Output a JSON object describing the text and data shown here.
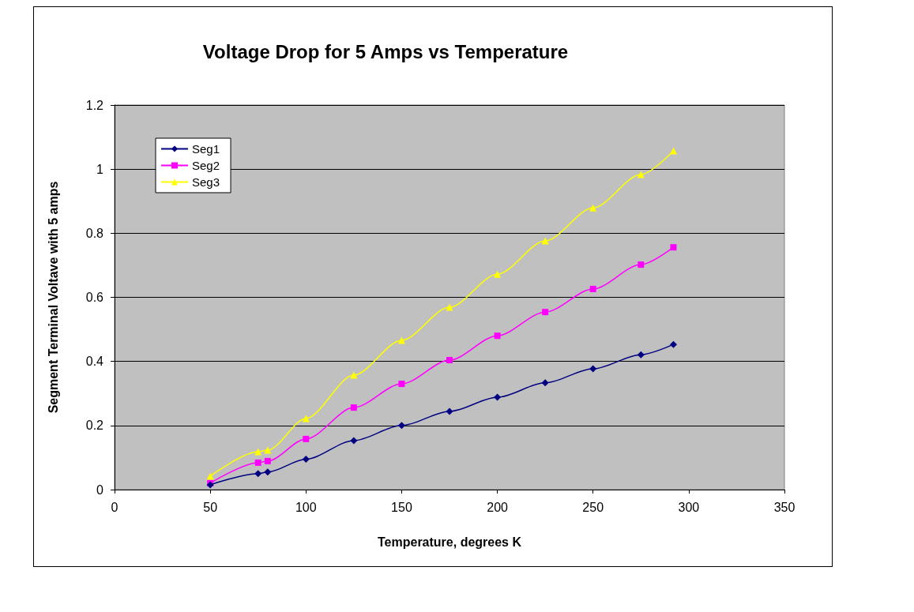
{
  "chart_data": {
    "type": "line",
    "title": "Voltage Drop for 5 Amps vs Temperature",
    "xlabel": "Temperature, degrees K",
    "ylabel": "Segment Terminal Voltave with 5 amps",
    "x": [
      50,
      75,
      80,
      100,
      125,
      150,
      175,
      200,
      225,
      250,
      275,
      292
    ],
    "series": [
      {
        "name": "Seg1",
        "color": "#000080",
        "marker": "diamond",
        "values": [
          0.015,
          0.05,
          0.055,
          0.095,
          0.153,
          0.2,
          0.244,
          0.288,
          0.333,
          0.377,
          0.421,
          0.453
        ]
      },
      {
        "name": "Seg2",
        "color": "#ff00ff",
        "marker": "square",
        "values": [
          0.02,
          0.084,
          0.089,
          0.158,
          0.256,
          0.33,
          0.404,
          0.48,
          0.554,
          0.626,
          0.702,
          0.756
        ]
      },
      {
        "name": "Seg3",
        "color": "#ffff00",
        "marker": "triangle",
        "values": [
          0.042,
          0.118,
          0.123,
          0.222,
          0.357,
          0.466,
          0.569,
          0.672,
          0.776,
          0.879,
          0.983,
          1.057
        ]
      }
    ],
    "xlim": [
      0,
      350
    ],
    "xticks": [
      0,
      50,
      100,
      150,
      200,
      250,
      300,
      350
    ],
    "ylim": [
      0,
      1.2
    ],
    "yticks": [
      0,
      0.2,
      0.4,
      0.6,
      0.8,
      1,
      1.2
    ],
    "grid": "y",
    "legend": "top left",
    "line_style": "solid"
  }
}
